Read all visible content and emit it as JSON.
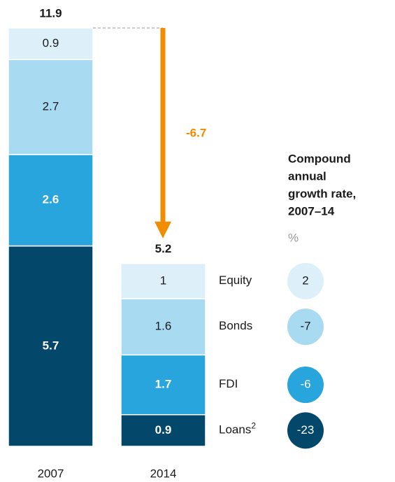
{
  "chart_data": {
    "type": "stacked_bar",
    "categories": [
      "2007",
      "2014"
    ],
    "totals": [
      11.9,
      5.2
    ],
    "change": -6.7,
    "change_color": "#f08c00",
    "series": [
      {
        "name": "Loans",
        "name_superscript": "2",
        "color": "#03486b",
        "text_color": "#ffffff",
        "values": [
          5.7,
          0.9
        ],
        "cagr": -23
      },
      {
        "name": "FDI",
        "color": "#27a5dc",
        "text_color": "#ffffff",
        "values": [
          2.6,
          1.7
        ],
        "cagr": -6
      },
      {
        "name": "Bonds",
        "color": "#a8dbf2",
        "text_color": "#1a1a1a",
        "values": [
          2.7,
          1.6
        ],
        "cagr": -7
      },
      {
        "name": "Equity",
        "color": "#ddf0fa",
        "text_color": "#1a1a1a",
        "values": [
          0.9,
          1.0
        ],
        "cagr": 2
      }
    ],
    "cagr_title_lines": [
      "Compound",
      "annual",
      "growth rate,",
      "2007–14"
    ],
    "cagr_unit": "%"
  }
}
